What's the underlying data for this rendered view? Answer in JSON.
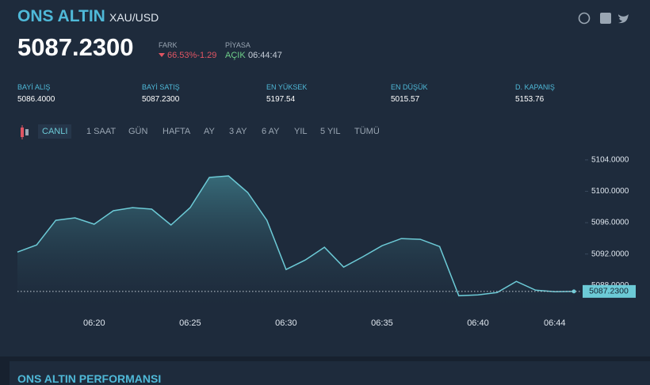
{
  "header": {
    "title": "ONS ALTIN",
    "symbol": "XAU/USD",
    "price": "5087.2300",
    "change_label": "FARK",
    "change": "66.53%-1.29",
    "market_label": "PİYASA",
    "market_status": "AÇIK",
    "time": "06:44:47"
  },
  "stats": [
    {
      "label": "BAYİ ALIŞ",
      "value": "5086.4000"
    },
    {
      "label": "BAYİ SATIŞ",
      "value": "5087.2300"
    },
    {
      "label": "EN YÜKSEK",
      "value": "5197.54"
    },
    {
      "label": "EN DÜŞÜK",
      "value": "5015.57"
    },
    {
      "label": "D. KAPANIŞ",
      "value": "5153.76"
    }
  ],
  "tabs": [
    "CANLI",
    "1 SAAT",
    "GÜN",
    "HAFTA",
    "AY",
    "3 AY",
    "6 AY",
    "YIL",
    "5 YIL",
    "TÜMÜ"
  ],
  "chart_data": {
    "type": "area",
    "x": [
      "06:16",
      "06:17",
      "06:18",
      "06:19",
      "06:20",
      "06:21",
      "06:22",
      "06:23",
      "06:24",
      "06:25",
      "06:26",
      "06:27",
      "06:28",
      "06:29",
      "06:30",
      "06:31",
      "06:32",
      "06:33",
      "06:34",
      "06:35",
      "06:36",
      "06:37",
      "06:38",
      "06:39",
      "06:40",
      "06:41",
      "06:42",
      "06:43",
      "06:44",
      "06:45"
    ],
    "values": [
      5092.25,
      5093.16,
      5096.3,
      5096.61,
      5095.8,
      5097.52,
      5097.92,
      5097.72,
      5095.7,
      5097.92,
      5101.77,
      5101.97,
      5099.85,
      5096.3,
      5090.03,
      5091.24,
      5092.86,
      5090.33,
      5091.65,
      5093.06,
      5093.97,
      5093.87,
      5092.96,
      5086.68,
      5086.78,
      5087.09,
      5088.51,
      5087.39,
      5087.19,
      5087.23
    ],
    "color": "#6ccad6",
    "xlim": [
      "06:16",
      "06:45"
    ],
    "xticks": [
      "06:20",
      "06:25",
      "06:30",
      "06:35",
      "06:40",
      "06:44"
    ],
    "ylim": [
      5085.5,
      5105.2
    ],
    "yticks": [
      {
        "value": 5088,
        "label": "5088.0000"
      },
      {
        "value": 5092,
        "label": "5092.0000"
      },
      {
        "value": 5096,
        "label": "5096.0000"
      },
      {
        "value": 5100,
        "label": "5100.0000"
      },
      {
        "value": 5104,
        "label": "5104.0000"
      }
    ],
    "reference_line": {
      "value": 5087.23,
      "label": "5087.2300"
    }
  },
  "footer": {
    "title": "ONS ALTIN PERFORMANSI"
  }
}
